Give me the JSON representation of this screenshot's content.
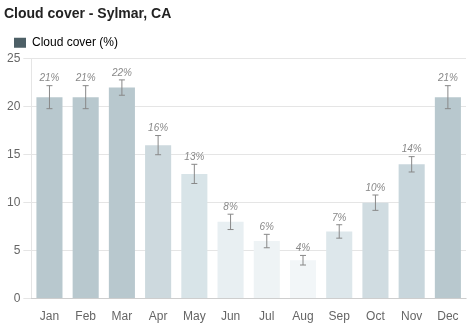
{
  "chart_data": {
    "type": "bar",
    "title": "Cloud cover - Sylmar, CA",
    "categories": [
      "Jan",
      "Feb",
      "Mar",
      "Apr",
      "May",
      "Jun",
      "Jul",
      "Aug",
      "Sep",
      "Oct",
      "Nov",
      "Dec"
    ],
    "series": [
      {
        "name": "Cloud cover (%)",
        "color": "#4d5f66",
        "colors": [
          "#b8c8ce",
          "#b8c8ce",
          "#b8c8ce",
          "#cdd9de",
          "#d8e4e8",
          "#e8eff2",
          "#eef3f5",
          "#f2f6f8",
          "#dde7eb",
          "#d0dce1",
          "#c8d6dc",
          "#b8c8ce"
        ],
        "values": [
          21,
          21,
          22,
          16,
          13,
          8,
          6,
          4,
          7,
          10,
          14,
          21
        ],
        "value_labels": [
          "21%",
          "21%",
          "22%",
          "16%",
          "13%",
          "8%",
          "6%",
          "4%",
          "7%",
          "10%",
          "14%",
          "21%"
        ],
        "error_values": [
          1.2,
          1.2,
          0.8,
          1.0,
          1.0,
          0.8,
          0.7,
          0.5,
          0.7,
          0.8,
          0.8,
          1.2
        ]
      }
    ],
    "ylim": [
      0,
      25
    ],
    "yticks": [
      0,
      5,
      10,
      15,
      20,
      25
    ],
    "grid": true,
    "legend": "upper left",
    "data_labels": true
  }
}
